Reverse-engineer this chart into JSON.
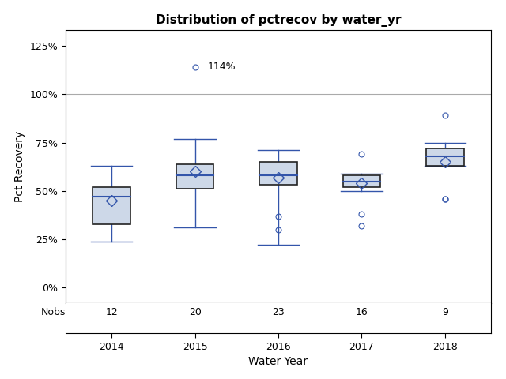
{
  "title": "Distribution of pctrecov by water_yr",
  "xlabel": "Water Year",
  "ylabel": "Pct Recovery",
  "years": [
    2014,
    2015,
    2016,
    2017,
    2018
  ],
  "nobs": [
    12,
    20,
    23,
    16,
    9
  ],
  "box_data": {
    "2014": {
      "whislo": 24,
      "q1": 33,
      "median": 47,
      "q3": 52,
      "whishi": 63,
      "mean": 45,
      "fliers": []
    },
    "2015": {
      "whislo": 31,
      "q1": 51,
      "median": 58,
      "q3": 64,
      "whishi": 77,
      "mean": 60,
      "fliers": [
        114
      ]
    },
    "2016": {
      "whislo": 22,
      "q1": 53,
      "median": 58,
      "q3": 65,
      "whishi": 71,
      "mean": 57,
      "fliers": [
        37,
        30
      ]
    },
    "2017": {
      "whislo": 50,
      "q1": 52,
      "median": 55,
      "q3": 58,
      "whishi": 59,
      "mean": 54,
      "fliers": [
        69,
        38,
        32
      ]
    },
    "2018": {
      "whislo": 63,
      "q1": 63,
      "median": 68,
      "q3": 72,
      "whishi": 75,
      "mean": 65,
      "fliers": [
        89,
        46,
        46
      ]
    }
  },
  "yticks": [
    0,
    25,
    50,
    75,
    100,
    125
  ],
  "ytick_labels": [
    "0%",
    "25%",
    "50%",
    "75%",
    "100%",
    "125%"
  ],
  "ylim": [
    -8,
    133
  ],
  "box_face_color": "#cdd8e8",
  "box_edge_color": "#222222",
  "median_color": "#3355aa",
  "mean_marker_edge_color": "#3355aa",
  "whisker_color": "#3355aa",
  "flier_edge_color": "#3355aa",
  "reference_line_y": 100,
  "reference_line_color": "#aaaaaa",
  "outlier_label_year": 2015,
  "outlier_label_value": 114,
  "outlier_label_text": "114%"
}
